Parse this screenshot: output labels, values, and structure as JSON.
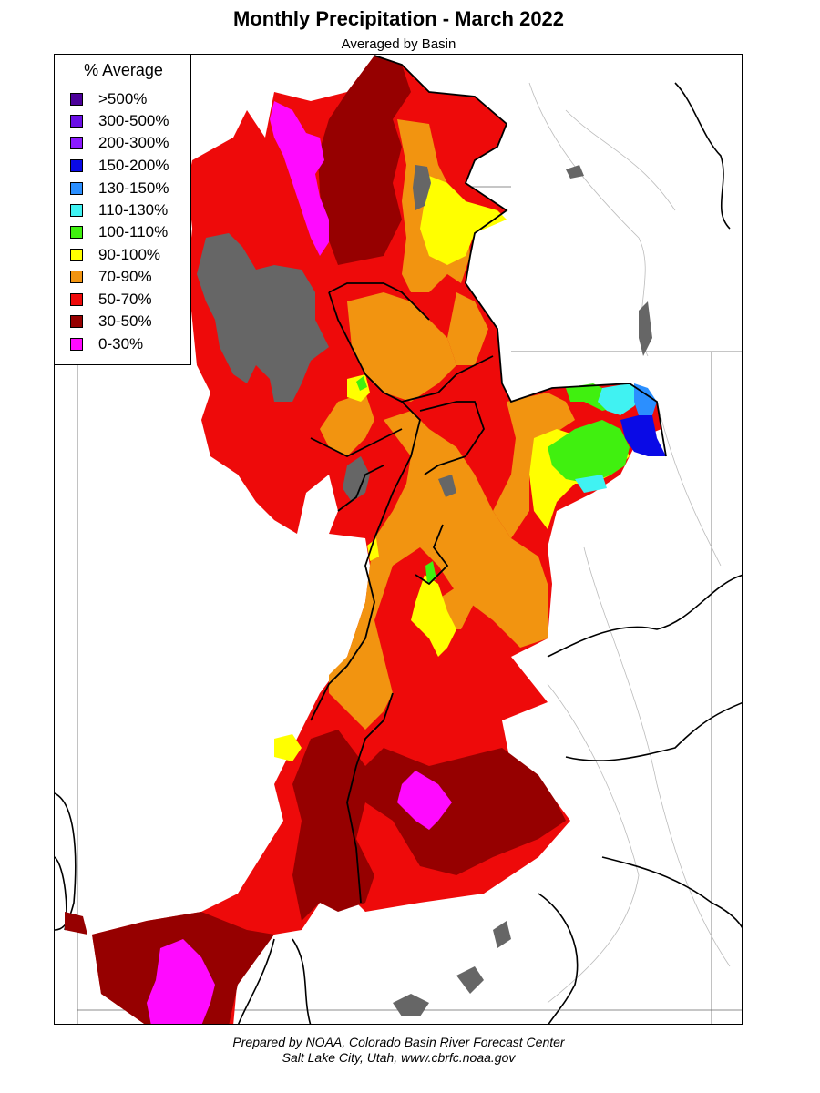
{
  "title": "Monthly Precipitation - March 2022",
  "subtitle": "Averaged by Basin",
  "legend": {
    "title": "% Average",
    "items": [
      {
        "label": ">500%",
        "color": "#4b0099"
      },
      {
        "label": "300-500%",
        "color": "#6a0fe6"
      },
      {
        "label": "200-300%",
        "color": "#8b1aff"
      },
      {
        "label": "150-200%",
        "color": "#0a0ae6"
      },
      {
        "label": "130-150%",
        "color": "#2b8fff"
      },
      {
        "label": "110-130%",
        "color": "#40f2f2"
      },
      {
        "label": "100-110%",
        "color": "#40f00f"
      },
      {
        "label": "90-100%",
        "color": "#ffff00"
      },
      {
        "label": "70-90%",
        "color": "#f29410"
      },
      {
        "label": "50-70%",
        "color": "#ee0a0a"
      },
      {
        "label": "30-50%",
        "color": "#960000"
      },
      {
        "label": "0-30%",
        "color": "#ff0aff"
      }
    ]
  },
  "map": {
    "no_data_color": "#666666"
  },
  "footer": {
    "line1": "Prepared by NOAA, Colorado Basin River Forecast Center",
    "line2": "Salt Lake City, Utah, www.cbrfc.noaa.gov"
  }
}
